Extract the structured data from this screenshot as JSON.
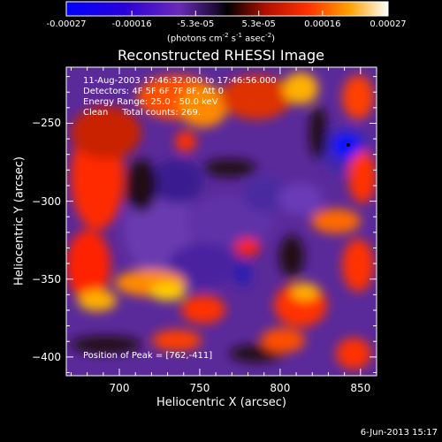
{
  "chart_data": {
    "type": "heatmap",
    "title": "Reconstructed RHESSI Image",
    "xlabel": "Heliocentric X (arcsec)",
    "ylabel": "Heliocentric Y (arcsec)",
    "xlim": [
      667,
      860
    ],
    "ylim": [
      -412,
      -214
    ],
    "xticks": [
      "700",
      "750",
      "800",
      "850"
    ],
    "yticks": [
      "-250",
      "-300",
      "-350",
      "-400"
    ],
    "colorbar": {
      "ticks": [
        "-0.00027",
        "-0.00016",
        "-5.3e-05",
        "5.3e-05",
        "0.00016",
        "0.00027"
      ],
      "label": "(photons cm",
      "label_sup1": "-2",
      "label_mid": " s",
      "label_sup2": "-1",
      "label_mid2": " asec",
      "label_sup3": "-2",
      "label_end": ")",
      "range": [
        -0.00027,
        0.00027
      ]
    },
    "annotations": [
      "11-Aug-2003 17:46:32.000 to 17:46:56.000",
      "Detectors: 4F 5F 6F 7F 8F, Att 0",
      "Energy Range: 25.0 - 50.0 keV",
      "Clean     Total counts: 269."
    ],
    "peak_text": "Position of Peak = [762,-411]",
    "peak_position": [
      762,
      -411
    ],
    "date_stamp": "6-Jun-2013 15:17"
  }
}
